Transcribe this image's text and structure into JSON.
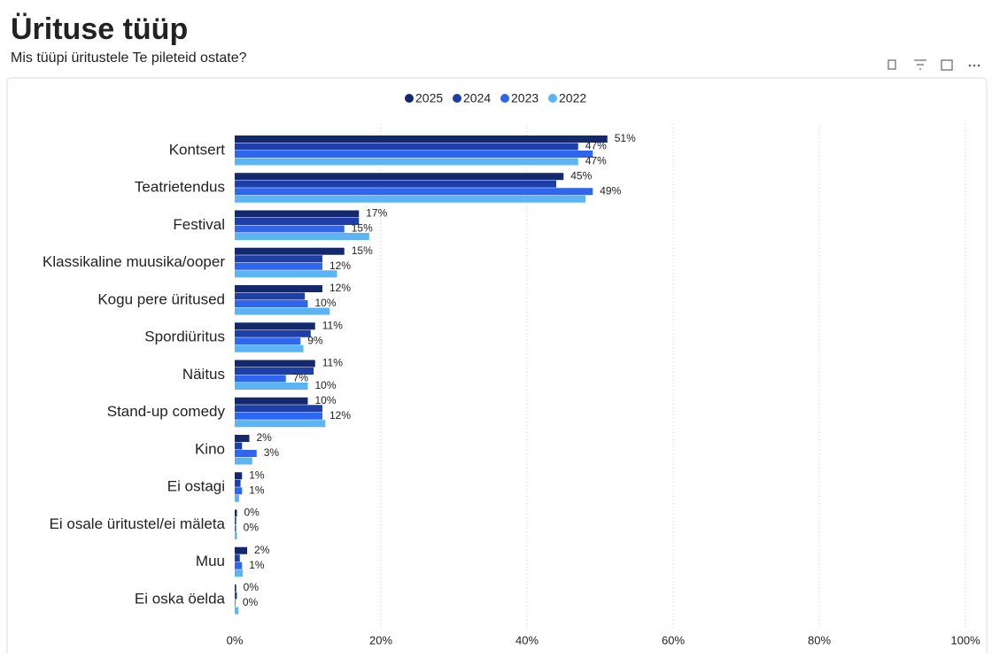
{
  "chart_data": {
    "type": "hbar",
    "title": "Ürituse tüüp",
    "subtitle": "Mis tüüpi üritustele Te pileteid ostate?",
    "categories": [
      "Kontsert",
      "Teatrietendus",
      "Festival",
      "Klassikaline muusika/ooper",
      "Kogu pere üritused",
      "Spordiüritus",
      "Näitus",
      "Stand-up comedy",
      "Kino",
      "Ei ostagi",
      "Ei osale üritustel/ei mäleta",
      "Muu",
      "Ei oska öelda"
    ],
    "series": [
      {
        "name": "2025",
        "color": "#14286e",
        "values": [
          51,
          45,
          17,
          15,
          12,
          11,
          11,
          10,
          2,
          1,
          0.3,
          1.7,
          0.2
        ],
        "value_labels": [
          "51%",
          "45%",
          "17%",
          "15%",
          "12%",
          "11%",
          "11%",
          "10%",
          "2%",
          "1%",
          "0%",
          "2%",
          "0%"
        ]
      },
      {
        "name": "2024",
        "color": "#1f3fa8",
        "values": [
          47,
          44,
          17,
          12,
          9.6,
          10.4,
          10.8,
          12,
          1,
          0.8,
          0.2,
          0.7,
          0.3
        ],
        "value_labels": [
          "47%",
          null,
          null,
          null,
          null,
          null,
          null,
          null,
          null,
          null,
          null,
          null,
          null
        ]
      },
      {
        "name": "2023",
        "color": "#2f66ee",
        "values": [
          49,
          49,
          15,
          12,
          10,
          9,
          7,
          12,
          3,
          1,
          0.2,
          1,
          0.1
        ],
        "value_labels": [
          null,
          "49%",
          "15%",
          "12%",
          "10%",
          "9%",
          "7%",
          "12%",
          "3%",
          "1%",
          "0%",
          "1%",
          "0%"
        ]
      },
      {
        "name": "2022",
        "color": "#5bb5f5",
        "values": [
          47,
          48,
          18.4,
          14,
          13,
          9.4,
          10,
          12.4,
          2.4,
          0.6,
          0.3,
          1.1,
          0.5
        ],
        "value_labels": [
          "47%",
          null,
          null,
          null,
          null,
          null,
          "10%",
          null,
          null,
          null,
          null,
          null,
          null
        ]
      }
    ],
    "xlim": [
      0,
      100
    ],
    "xticks": [
      {
        "value": 0,
        "label": "0%"
      },
      {
        "value": 20,
        "label": "20%"
      },
      {
        "value": 40,
        "label": "40%"
      },
      {
        "value": 60,
        "label": "60%"
      },
      {
        "value": 80,
        "label": "80%"
      },
      {
        "value": 100,
        "label": "100%"
      }
    ],
    "grid": true,
    "legend": "top"
  }
}
